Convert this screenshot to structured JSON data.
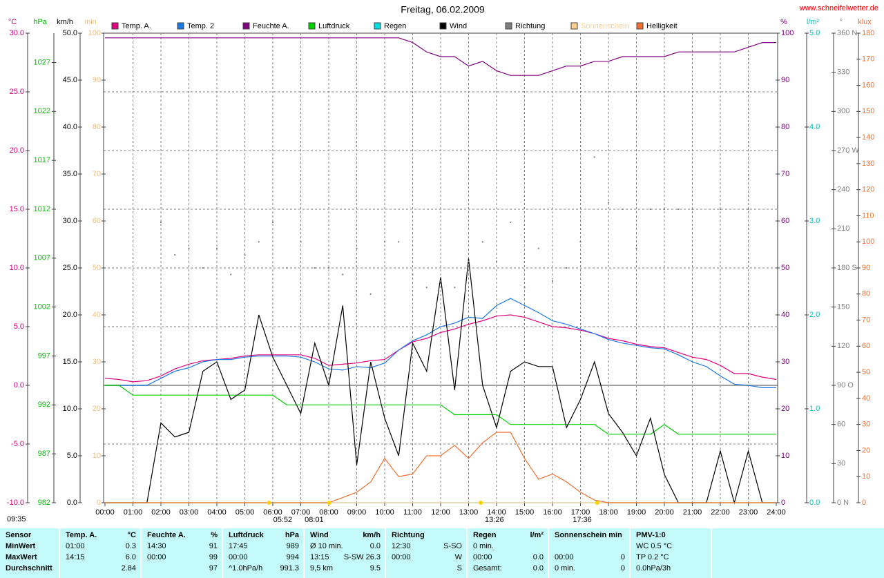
{
  "chart_data": {
    "type": "line",
    "title": "Freitag, 06.02.2009",
    "source": "www.schneifelwetter.de",
    "time": "09:35",
    "events": [
      "05:52",
      "08:01",
      "13:26",
      "17:36"
    ],
    "xlim": [
      0,
      24
    ],
    "xticks": [
      {
        "value": 0,
        "label": "00:00"
      },
      {
        "value": 1,
        "label": "01:00"
      },
      {
        "value": 2,
        "label": "02:00"
      },
      {
        "value": 3,
        "label": "03:00"
      },
      {
        "value": 4,
        "label": "04:00"
      },
      {
        "value": 5,
        "label": "05:00"
      },
      {
        "value": 6,
        "label": "06:00"
      },
      {
        "value": 7,
        "label": "07:00"
      },
      {
        "value": 8,
        "label": "08:00"
      },
      {
        "value": 9,
        "label": "09:00"
      },
      {
        "value": 10,
        "label": "10:00"
      },
      {
        "value": 11,
        "label": "11:00"
      },
      {
        "value": 12,
        "label": "12:00"
      },
      {
        "value": 13,
        "label": "13:00"
      },
      {
        "value": 14,
        "label": "14:00"
      },
      {
        "value": 15,
        "label": "15:00"
      },
      {
        "value": 16,
        "label": "16:00"
      },
      {
        "value": 17,
        "label": "17:00"
      },
      {
        "value": 18,
        "label": "18:00"
      },
      {
        "value": 19,
        "label": "19:00"
      },
      {
        "value": 20,
        "label": "20:00"
      },
      {
        "value": 21,
        "label": "21:00"
      },
      {
        "value": 22,
        "label": "22:00"
      },
      {
        "value": 23,
        "label": "23:00"
      },
      {
        "value": 24,
        "label": "24:00"
      }
    ],
    "x": [
      0,
      0.5,
      1,
      1.5,
      2,
      2.5,
      3,
      3.5,
      4,
      4.5,
      5,
      5.5,
      6,
      6.5,
      7,
      7.5,
      8,
      8.5,
      9,
      9.5,
      10,
      10.5,
      11,
      11.5,
      12,
      12.5,
      13,
      13.5,
      14,
      14.5,
      15,
      15.5,
      16,
      16.5,
      17,
      17.5,
      18,
      18.5,
      19,
      19.5,
      20,
      20.5,
      21,
      21.5,
      22,
      22.5,
      23,
      23.5,
      24
    ],
    "axes": [
      {
        "unit": "°C",
        "color": "#d0007f",
        "side": "left",
        "grid": true,
        "lim": [
          -10,
          30
        ],
        "ticks": [
          {
            "value": -10,
            "label": "-10.0"
          },
          {
            "value": -5,
            "label": "-5.0"
          },
          {
            "value": 0,
            "label": "0.0"
          },
          {
            "value": 5,
            "label": "5.0"
          },
          {
            "value": 10,
            "label": "10.0"
          },
          {
            "value": 15,
            "label": "15.0"
          },
          {
            "value": 20,
            "label": "20.0"
          },
          {
            "value": 25,
            "label": "25.0"
          },
          {
            "value": 30,
            "label": "30.0"
          }
        ]
      },
      {
        "unit": "hPa",
        "color": "#00c000",
        "side": "left",
        "lim": [
          982,
          1030
        ],
        "ticks": [
          982,
          987,
          992,
          997,
          1002,
          1007,
          1012,
          1017,
          1022,
          1027
        ]
      },
      {
        "unit": "km/h",
        "color": "#000000",
        "side": "left",
        "lim": [
          0,
          50
        ],
        "ticks": [
          {
            "value": 0,
            "label": "0.0"
          },
          {
            "value": 5,
            "label": "5.0"
          },
          {
            "value": 10,
            "label": "10.0"
          },
          {
            "value": 15,
            "label": "15.0"
          },
          {
            "value": 20,
            "label": "20.0"
          },
          {
            "value": 25,
            "label": "25.0"
          },
          {
            "value": 30,
            "label": "30.0"
          },
          {
            "value": 35,
            "label": "35.0"
          },
          {
            "value": 40,
            "label": "40.0"
          },
          {
            "value": 45,
            "label": "45.0"
          },
          {
            "value": 50,
            "label": "50.0"
          }
        ]
      },
      {
        "unit": "min",
        "color": "#f0c080",
        "side": "left",
        "lim": [
          0,
          100
        ],
        "ticks": [
          0,
          10,
          20,
          30,
          40,
          50,
          60,
          70,
          80,
          90,
          100
        ]
      },
      {
        "unit": "%",
        "color": "#800080",
        "side": "right",
        "lim": [
          0,
          100
        ],
        "ticks": [
          0,
          10,
          20,
          30,
          40,
          50,
          60,
          70,
          80,
          90,
          100
        ]
      },
      {
        "unit": "l/m²",
        "color": "#00c0c0",
        "side": "right",
        "lim": [
          0,
          5
        ],
        "ticks": [
          {
            "value": 0,
            "label": "0.0"
          },
          {
            "value": 1,
            "label": "1.0"
          },
          {
            "value": 2,
            "label": "2.0"
          },
          {
            "value": 3,
            "label": "3.0"
          },
          {
            "value": 4,
            "label": "4.0"
          },
          {
            "value": 5,
            "label": "5.0"
          }
        ]
      },
      {
        "unit": "°",
        "color": "#808080",
        "side": "right",
        "lim": [
          0,
          360
        ],
        "ticks": [
          {
            "value": 0,
            "label": "0 N"
          },
          30,
          60,
          {
            "value": 90,
            "label": "90 O"
          },
          120,
          150,
          {
            "value": 180,
            "label": "180 S"
          },
          210,
          240,
          {
            "value": 270,
            "label": "270 W"
          },
          300,
          330,
          {
            "value": 360,
            "label": "360 N"
          }
        ]
      },
      {
        "unit": "klux",
        "color": "#f07030",
        "side": "right",
        "lim": [
          0,
          180
        ],
        "ticks": [
          0,
          10,
          20,
          30,
          40,
          50,
          60,
          70,
          80,
          90,
          100,
          110,
          120,
          130,
          140,
          150,
          160,
          170,
          180
        ]
      }
    ],
    "series": [
      {
        "name": "Temp. A.",
        "color": "#e0007f",
        "axis": 0,
        "values": [
          0.6,
          0.5,
          0.3,
          0.4,
          0.8,
          1.4,
          1.8,
          2.1,
          2.2,
          2.3,
          2.5,
          2.6,
          2.6,
          2.6,
          2.6,
          2.3,
          1.7,
          1.8,
          1.9,
          2.1,
          2.2,
          3.0,
          3.7,
          4.0,
          4.5,
          4.8,
          5.2,
          5.5,
          5.9,
          6.0,
          5.8,
          5.4,
          5.0,
          4.9,
          4.7,
          4.4,
          4.0,
          3.8,
          3.5,
          3.3,
          3.2,
          2.8,
          2.4,
          2.2,
          1.7,
          1.0,
          1.0,
          0.7,
          0.5
        ]
      },
      {
        "name": "Temp. 2",
        "color": "#1e78e6",
        "axis": 0,
        "values": [
          0.0,
          0.0,
          0.0,
          0.0,
          0.6,
          1.2,
          1.5,
          2.0,
          2.2,
          2.2,
          2.4,
          2.5,
          2.5,
          2.5,
          2.4,
          2.0,
          1.4,
          1.3,
          1.6,
          1.5,
          1.9,
          3.0,
          3.8,
          4.3,
          5.0,
          5.3,
          5.8,
          5.7,
          6.8,
          7.4,
          6.8,
          6.2,
          5.5,
          5.2,
          4.8,
          4.4,
          3.9,
          3.6,
          3.4,
          3.2,
          3.1,
          2.6,
          2.0,
          1.6,
          0.8,
          0.1,
          0.0,
          -0.2,
          -0.2
        ]
      },
      {
        "name": "Feuchte A.",
        "color": "#800080",
        "axis": 4,
        "values": [
          99,
          99,
          99,
          99,
          99,
          99,
          99,
          99,
          99,
          99,
          99,
          99,
          99,
          99,
          99,
          99,
          99,
          99,
          99,
          99,
          99,
          99,
          98,
          96,
          95,
          95,
          93,
          94,
          92,
          91,
          91,
          91,
          92,
          93,
          93,
          94,
          94,
          95,
          95,
          95,
          95,
          96,
          96,
          96,
          96,
          96,
          97,
          98,
          98
        ]
      },
      {
        "name": "Luftdruck",
        "color": "#00d000",
        "axis": 1,
        "values": [
          994,
          994,
          993,
          993,
          993,
          993,
          993,
          993,
          993,
          993,
          993,
          993,
          993,
          992,
          992,
          992,
          992,
          992,
          992,
          992,
          992,
          992,
          992,
          992,
          992,
          991,
          991,
          991,
          991,
          990,
          990,
          990,
          990,
          990,
          990,
          990,
          989,
          989,
          989,
          989,
          990,
          989,
          989,
          989,
          989,
          989,
          989,
          989,
          989
        ]
      },
      {
        "name": "Regen",
        "color": "#00e0e0",
        "axis": 5,
        "values": [
          0,
          0,
          0,
          0,
          0,
          0,
          0,
          0,
          0,
          0,
          0,
          0,
          0,
          0,
          0,
          0,
          0,
          0,
          0,
          0,
          0,
          0,
          0,
          0,
          0,
          0,
          0,
          0,
          0,
          0,
          0,
          0,
          0,
          0,
          0,
          0,
          0,
          0,
          0,
          0,
          0,
          0,
          0,
          0,
          0,
          0,
          0,
          0,
          0
        ]
      },
      {
        "name": "Wind",
        "color": "#000000",
        "axis": 2,
        "values": [
          0,
          0,
          0,
          0,
          8.5,
          7,
          7.5,
          14,
          15,
          11,
          12,
          20,
          15.5,
          12.5,
          9.5,
          17,
          12.5,
          21,
          4,
          15,
          9,
          5,
          17,
          14,
          24,
          12,
          26,
          12.5,
          8,
          14,
          15,
          14.5,
          14.5,
          8,
          11,
          15,
          9.5,
          7.5,
          5,
          9,
          3,
          0,
          0,
          0,
          5.5,
          0,
          5.5,
          0,
          0
        ]
      },
      {
        "name": "Richtung",
        "color": "#808080",
        "axis": 6,
        "style": "dots",
        "values": [
          null,
          null,
          null,
          null,
          215,
          190,
          195,
          180,
          195,
          175,
          190,
          200,
          215,
          180,
          200,
          180,
          180,
          175,
          195,
          160,
          200,
          200,
          175,
          165,
          170,
          165,
          185,
          200,
          185,
          215,
          165,
          195,
          170,
          180,
          200,
          265,
          230,
          225,
          195,
          225,
          225,
          225,
          225,
          null,
          225,
          null,
          225,
          null,
          null
        ]
      },
      {
        "name": "Sonnenschein",
        "color": "#ffd090",
        "axis": 3,
        "values": [
          0,
          0,
          0,
          0,
          0,
          0,
          0,
          0,
          0,
          0,
          0,
          0,
          0,
          0,
          0,
          0,
          0,
          0,
          0,
          0,
          0,
          0,
          0,
          0,
          0,
          0,
          0,
          0,
          0,
          0,
          0,
          0,
          0,
          0,
          0,
          0,
          0,
          0,
          0,
          0,
          0,
          0,
          0,
          0,
          0,
          0,
          0,
          0,
          0
        ]
      },
      {
        "name": "Helligkeit",
        "color": "#f07030",
        "axis": 7,
        "values": [
          0,
          0,
          0,
          0,
          0,
          0,
          0,
          0,
          0,
          0,
          0,
          0,
          0,
          0,
          0,
          0,
          0,
          2,
          4,
          8,
          17,
          10,
          11,
          18,
          18,
          22,
          17,
          23,
          27,
          27,
          17,
          9,
          11,
          8,
          4,
          1,
          0,
          0,
          0,
          0,
          0,
          0,
          0,
          0,
          0,
          0,
          0,
          0,
          0
        ]
      }
    ]
  },
  "table": {
    "columns": [
      {
        "header": {
          "left": "Sensor"
        },
        "rows": [
          {
            "left": "MinWert"
          },
          {
            "left": "MaxWert"
          },
          {
            "left": "Durchschnitt"
          }
        ]
      },
      {
        "header": {
          "left": "Temp. A.",
          "right": "°C"
        },
        "rows": [
          {
            "left": "01:00",
            "right": "0.3"
          },
          {
            "left": "14:15",
            "right": "6.0"
          },
          {
            "right": "2.84"
          }
        ]
      },
      {
        "header": {
          "left": "Feuchte A.",
          "right": "%"
        },
        "rows": [
          {
            "left": "14:30",
            "right": "91"
          },
          {
            "left": "00:00",
            "right": "99"
          },
          {
            "right": "97"
          }
        ]
      },
      {
        "header": {
          "left": "Luftdruck",
          "right": "hPa"
        },
        "rows": [
          {
            "left": "17:45",
            "right": "989"
          },
          {
            "left": "00:00",
            "right": "994"
          },
          {
            "left": "^1.0hPa/h",
            "right": "991.3"
          }
        ]
      },
      {
        "header": {
          "left": "Wind",
          "right": "km/h"
        },
        "rows": [
          {
            "left": "Ø 10 min.",
            "right": "0.0"
          },
          {
            "left": "13:15",
            "right": "S-SW 26.3"
          },
          {
            "left": "9,5 km",
            "right": "9.5"
          }
        ]
      },
      {
        "header": {
          "left": "Richtung"
        },
        "rows": [
          {
            "left": "12:30",
            "right": "S-SO"
          },
          {
            "left": "00:00",
            "right": "W"
          },
          {
            "right": "S"
          }
        ]
      },
      {
        "header": {
          "left": "Regen",
          "right": "l/m²"
        },
        "rows": [
          {
            "left": "0 min."
          },
          {
            "left": "00:00",
            "right": "0.0"
          },
          {
            "left": "Gesamt:",
            "right": "0.0"
          }
        ]
      },
      {
        "header": {
          "left": "Sonnenschein min"
        },
        "rows": [
          {},
          {
            "left": "00:00",
            "right": "0"
          },
          {
            "left": "0 min.",
            "right": "0"
          }
        ]
      },
      {
        "header": {
          "left": "PMV-1:0"
        },
        "rows": [
          {
            "left": "WC 0.5 °C"
          },
          {
            "left": "TP 0.2 °C"
          },
          {
            "left": "0.0hPa/3h"
          }
        ]
      }
    ]
  }
}
